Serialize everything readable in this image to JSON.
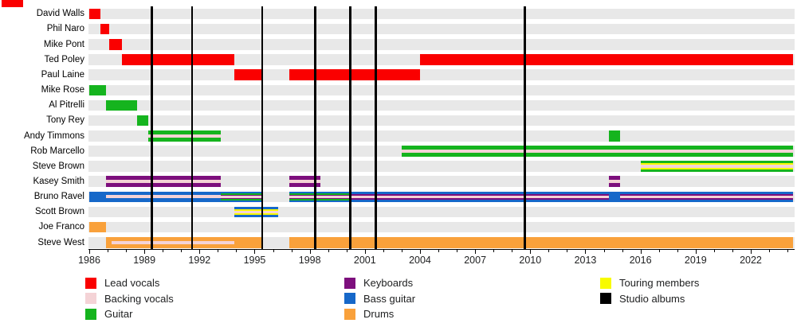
{
  "chart_data": {
    "type": "bar",
    "subtype": "band-members-timeline-gantt",
    "title": "",
    "xlabel": "",
    "ylabel": "",
    "grid": false,
    "legend_position": "bottom",
    "x_axis": {
      "min": 1986,
      "max": 2024.3,
      "major_ticks": [
        1986,
        1989,
        1992,
        1995,
        1998,
        2001,
        2004,
        2007,
        2010,
        2013,
        2016,
        2019,
        2022
      ],
      "minor_tick_step": 1
    },
    "roles": {
      "lead_vocals": {
        "label": "Lead vocals",
        "color": "#fa0000"
      },
      "backing_vocals": {
        "label": "Backing vocals",
        "color": "#f4d3d6"
      },
      "guitar": {
        "label": "Guitar",
        "color": "#15b41e"
      },
      "keyboards": {
        "label": "Keyboards",
        "color": "#7d0f7d"
      },
      "bass": {
        "label": "Bass guitar",
        "color": "#1668c9"
      },
      "drums": {
        "label": "Drums",
        "color": "#f9a13b"
      },
      "touring": {
        "label": "Touring members",
        "color": "#f8fb00"
      },
      "studio_albums": {
        "label": "Studio albums",
        "color": "#000000"
      }
    },
    "members": [
      {
        "name": "David Walls",
        "segments": [
          {
            "start": 1986.0,
            "end": 1986.6,
            "roles": [
              "lead_vocals"
            ]
          }
        ]
      },
      {
        "name": "Phil Naro",
        "segments": [
          {
            "start": 1986.6,
            "end": 1987.1,
            "roles": [
              "lead_vocals"
            ]
          }
        ]
      },
      {
        "name": "Mike Pont",
        "segments": [
          {
            "start": 1987.1,
            "end": 1987.8,
            "roles": [
              "lead_vocals"
            ]
          }
        ]
      },
      {
        "name": "Ted Poley",
        "segments": [
          {
            "start": 1987.8,
            "end": 1993.9,
            "roles": [
              "lead_vocals"
            ]
          },
          {
            "start": 2004.0,
            "end": 2024.3,
            "roles": [
              "lead_vocals"
            ]
          }
        ]
      },
      {
        "name": "Paul Laine",
        "segments": [
          {
            "start": 1993.9,
            "end": 1995.4,
            "roles": [
              "lead_vocals"
            ]
          },
          {
            "start": 1996.9,
            "end": 2004.0,
            "roles": [
              "lead_vocals"
            ]
          }
        ]
      },
      {
        "name": "Mike Rose",
        "segments": [
          {
            "start": 1986.0,
            "end": 1986.9,
            "roles": [
              "guitar"
            ]
          }
        ]
      },
      {
        "name": "Al Pitrelli",
        "segments": [
          {
            "start": 1986.9,
            "end": 1988.6,
            "roles": [
              "guitar"
            ]
          }
        ]
      },
      {
        "name": "Tony Rey",
        "segments": [
          {
            "start": 1988.6,
            "end": 1989.2,
            "roles": [
              "guitar"
            ]
          }
        ]
      },
      {
        "name": "Andy Timmons",
        "segments": [
          {
            "start": 1989.2,
            "end": 1993.15,
            "roles": [
              "guitar",
              "backing_vocals"
            ]
          },
          {
            "start": 2014.3,
            "end": 2014.9,
            "roles": [
              "guitar"
            ]
          }
        ]
      },
      {
        "name": "Rob Marcello",
        "segments": [
          {
            "start": 2003.0,
            "end": 2024.3,
            "roles": [
              "guitar",
              "backing_vocals"
            ]
          }
        ]
      },
      {
        "name": "Steve Brown",
        "segments": [
          {
            "start": 2016.0,
            "end": 2024.3,
            "roles": [
              "guitar",
              "touring",
              "backing_vocals"
            ]
          }
        ]
      },
      {
        "name": "Kasey Smith",
        "segments": [
          {
            "start": 1986.9,
            "end": 1993.15,
            "roles": [
              "keyboards",
              "backing_vocals"
            ]
          },
          {
            "start": 1996.9,
            "end": 1998.6,
            "roles": [
              "keyboards",
              "backing_vocals"
            ]
          },
          {
            "start": 2014.3,
            "end": 2014.9,
            "roles": [
              "keyboards",
              "backing_vocals"
            ]
          }
        ]
      },
      {
        "name": "Bruno Ravel",
        "segments": [
          {
            "start": 1986.0,
            "end": 1986.9,
            "roles": [
              "bass"
            ]
          },
          {
            "start": 1986.9,
            "end": 1993.15,
            "roles": [
              "bass",
              "backing_vocals"
            ]
          },
          {
            "start": 1993.15,
            "end": 1995.4,
            "roles": [
              "bass",
              "guitar",
              "keyboards",
              "backing_vocals"
            ]
          },
          {
            "start": 1996.9,
            "end": 2000.2,
            "roles": [
              "bass",
              "guitar",
              "keyboards",
              "backing_vocals"
            ]
          },
          {
            "start": 2000.2,
            "end": 2014.3,
            "roles": [
              "bass",
              "keyboards",
              "backing_vocals"
            ]
          },
          {
            "start": 2014.3,
            "end": 2014.9,
            "roles": [
              "bass"
            ]
          },
          {
            "start": 2014.9,
            "end": 2024.3,
            "roles": [
              "bass",
              "keyboards",
              "backing_vocals"
            ]
          }
        ]
      },
      {
        "name": "Scott Brown",
        "segments": [
          {
            "start": 1993.9,
            "end": 1996.3,
            "roles": [
              "bass",
              "touring",
              "backing_vocals"
            ]
          }
        ]
      },
      {
        "name": "Joe Franco",
        "segments": [
          {
            "start": 1986.0,
            "end": 1986.9,
            "roles": [
              "drums"
            ]
          }
        ]
      },
      {
        "name": "Steve West",
        "segments": [
          {
            "start": 1986.9,
            "end": 1987.2,
            "roles": [
              "drums"
            ]
          },
          {
            "start": 1987.2,
            "end": 1993.9,
            "roles": [
              "drums",
              "backing_vocals"
            ]
          },
          {
            "start": 1993.9,
            "end": 1995.4,
            "roles": [
              "drums"
            ]
          },
          {
            "start": 1996.9,
            "end": 2024.3,
            "roles": [
              "drums"
            ]
          }
        ]
      }
    ],
    "album_lines": [
      1989.4,
      1991.6,
      1995.4,
      1998.3,
      2000.2,
      2001.6,
      2009.7
    ]
  },
  "legend": {
    "columns": [
      {
        "items": [
          {
            "label": "Lead vocals",
            "color": "#fa0000"
          },
          {
            "label": "Backing vocals",
            "color": "#f4d3d6"
          },
          {
            "label": "Guitar",
            "color": "#15b41e"
          }
        ]
      },
      {
        "items": [
          {
            "label": "Keyboards",
            "color": "#7d0f7d"
          },
          {
            "label": "Bass guitar",
            "color": "#1668c9"
          },
          {
            "label": "Drums",
            "color": "#f9a13b"
          }
        ]
      },
      {
        "items": [
          {
            "label": "Touring members",
            "color": "#f8fb00"
          },
          {
            "label": "Studio albums",
            "color": "#000000"
          }
        ]
      }
    ]
  },
  "colors": {
    "row_band": "#e8e8e8",
    "axis": "#000000",
    "crop_fragment": "#fa0000"
  }
}
